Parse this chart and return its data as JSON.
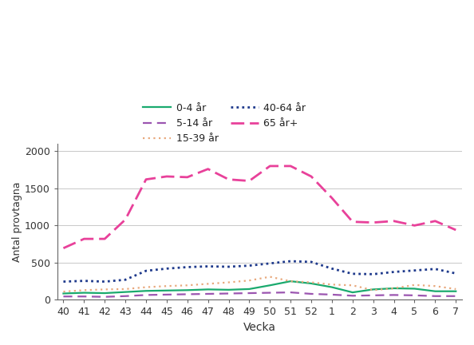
{
  "weeks": [
    40,
    41,
    42,
    43,
    44,
    45,
    46,
    47,
    48,
    49,
    50,
    51,
    52,
    1,
    2,
    3,
    4,
    5,
    6,
    7
  ],
  "series": {
    "0-4 år": {
      "values": [
        85,
        95,
        90,
        105,
        120,
        125,
        130,
        140,
        135,
        145,
        195,
        250,
        220,
        170,
        100,
        140,
        155,
        150,
        115,
        115
      ],
      "color": "#1aaa6e",
      "linestyle": "solid",
      "linewidth": 1.6,
      "label": "0-4 år"
    },
    "5-14 år": {
      "values": [
        45,
        45,
        40,
        50,
        65,
        70,
        75,
        80,
        85,
        90,
        95,
        100,
        80,
        70,
        55,
        60,
        65,
        60,
        50,
        50
      ],
      "color": "#9b55b0",
      "linestyle": "dashed",
      "linewidth": 1.6,
      "label": "5-14 år"
    },
    "15-39 år": {
      "values": [
        110,
        130,
        140,
        145,
        170,
        185,
        195,
        215,
        235,
        260,
        310,
        250,
        235,
        205,
        195,
        130,
        155,
        200,
        185,
        145
      ],
      "color": "#e8a87c",
      "linestyle": "dotted",
      "linewidth": 1.6,
      "label": "15-39 år"
    },
    "40-64 år": {
      "values": [
        245,
        255,
        245,
        270,
        390,
        420,
        440,
        450,
        445,
        460,
        490,
        520,
        510,
        420,
        350,
        345,
        375,
        395,
        415,
        355
      ],
      "color": "#1f3a8c",
      "linestyle": "dotted",
      "linewidth": 2.0,
      "label": "40-64 år"
    },
    "65 år+": {
      "values": [
        695,
        820,
        820,
        1080,
        1620,
        1660,
        1650,
        1760,
        1620,
        1600,
        1800,
        1800,
        1660,
        1370,
        1050,
        1040,
        1060,
        1000,
        1060,
        940
      ],
      "color": "#e8419a",
      "linestyle": "dashed",
      "linewidth": 2.0,
      "label": "65 år+"
    }
  },
  "xlabel": "Vecka",
  "ylabel": "Antal provtagna",
  "ylim": [
    0,
    2100
  ],
  "yticks": [
    0,
    500,
    1000,
    1500,
    2000
  ],
  "background_color": "#ffffff",
  "grid_color": "#c8c8c8",
  "tick_color": "#333333",
  "label_color": "#333333",
  "legend_row1": [
    "0-4 år",
    "5-14 år"
  ],
  "legend_row2": [
    "15-39 år",
    "40-64 år"
  ],
  "legend_row3": [
    "65 år+"
  ]
}
